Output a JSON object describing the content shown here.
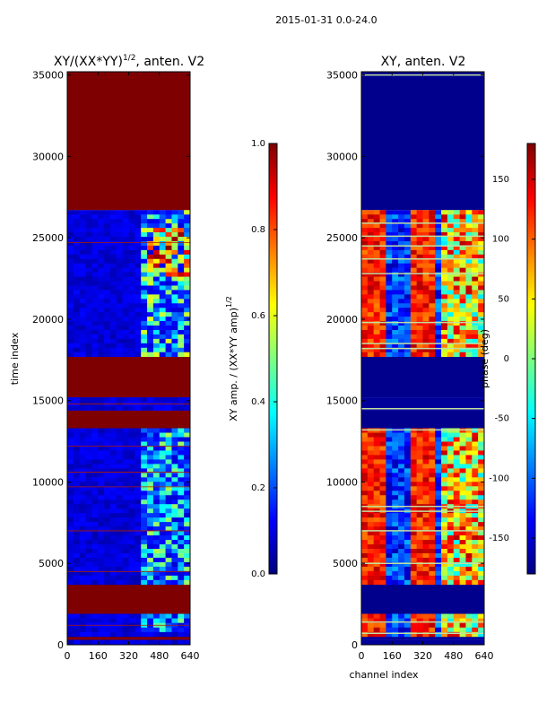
{
  "figure": {
    "suptitle": "2015-01-31 0.0-24.0"
  },
  "colors": {
    "jet": [
      "#00007f",
      "#0000ff",
      "#007fff",
      "#00ffff",
      "#7fff7f",
      "#ffff00",
      "#ff7f00",
      "#ff0000",
      "#7f0000"
    ],
    "frame": "#000000",
    "hline_left": "#b01a00",
    "hline_right": "#c0e0a0"
  },
  "chart_data": [
    {
      "type": "heatmap",
      "title_main": "XY/(XX*YY)",
      "title_sup": "1/2",
      "title_tail": ", anten. V2",
      "ylabel": "time index",
      "xlabel": "",
      "xlim": [
        0,
        640
      ],
      "ylim": [
        0,
        35200
      ],
      "xticks": [
        "0",
        "160",
        "320",
        "480",
        "640"
      ],
      "yticks": [
        "0",
        "5000",
        "10000",
        "15000",
        "20000",
        "25000",
        "30000",
        "35000"
      ],
      "bands": [
        {
          "y0": 0,
          "y1": 300,
          "v": 0.05
        },
        {
          "y0": 300,
          "y1": 500,
          "v": 1.0
        },
        {
          "y0": 500,
          "y1": 1900,
          "v": 0.08
        },
        {
          "y0": 1900,
          "y1": 3700,
          "v": 1.0
        },
        {
          "y0": 3700,
          "y1": 13300,
          "v": 0.06
        },
        {
          "y0": 13300,
          "y1": 14400,
          "v": 1.0
        },
        {
          "y0": 14400,
          "y1": 15200,
          "v": 0.05
        },
        {
          "y0": 15200,
          "y1": 17700,
          "v": 1.0
        },
        {
          "y0": 17700,
          "y1": 26700,
          "v": 0.06
        },
        {
          "y0": 26700,
          "y1": 35200,
          "v": 1.0
        }
      ],
      "hot_regions": [
        {
          "x0": 400,
          "x1": 640,
          "y0": 700,
          "y1": 1900,
          "v": 0.3
        },
        {
          "x0": 400,
          "x1": 640,
          "y0": 3700,
          "y1": 13300,
          "v": 0.35
        },
        {
          "x0": 400,
          "x1": 640,
          "y0": 17700,
          "y1": 26700,
          "v": 0.4
        }
      ],
      "hotspots": [
        {
          "x0": 420,
          "x1": 640,
          "y0": 22500,
          "y1": 25500,
          "v": 0.75
        }
      ],
      "hlines": [
        1200,
        4500,
        7000,
        9700,
        10600,
        12200,
        14800,
        24700
      ],
      "colorbar": {
        "label_main": "XY amp. / (XX*YY amp)",
        "label_sup": "1/2",
        "min": 0.0,
        "max": 1.0,
        "ticks": [
          "0.0",
          "0.2",
          "0.4",
          "0.6",
          "0.8",
          "1.0"
        ]
      }
    },
    {
      "type": "heatmap",
      "title": "XY, anten. V2",
      "ylabel": "",
      "xlabel": "channel index",
      "xlim": [
        0,
        640
      ],
      "ylim": [
        0,
        35200
      ],
      "xticks": [
        "0",
        "160",
        "320",
        "480",
        "640"
      ],
      "yticks": [
        "0",
        "5000",
        "10000",
        "15000",
        "20000",
        "25000",
        "30000",
        "35000"
      ],
      "bands": [
        {
          "y0": 0,
          "y1": 300,
          "v": -170
        },
        {
          "y0": 300,
          "y1": 500,
          "v": -170
        },
        {
          "y0": 500,
          "y1": 1900,
          "v": 20
        },
        {
          "y0": 1900,
          "y1": 3700,
          "v": -175
        },
        {
          "y0": 3700,
          "y1": 13300,
          "v": 40
        },
        {
          "y0": 13300,
          "y1": 14400,
          "v": -175
        },
        {
          "y0": 14400,
          "y1": 15200,
          "v": -170
        },
        {
          "y0": 15200,
          "y1": 17700,
          "v": -175
        },
        {
          "y0": 17700,
          "y1": 26700,
          "v": 20
        },
        {
          "y0": 26700,
          "y1": 35200,
          "v": -175
        }
      ],
      "hlines": [
        700,
        1400,
        5000,
        7000,
        8200,
        8500,
        13200,
        14500,
        18200,
        18500,
        19800,
        22800,
        23700,
        24500,
        25100,
        25900,
        35000
      ],
      "colorbar": {
        "label": "phase (deg)",
        "min": -180,
        "max": 180,
        "ticks": [
          "-150",
          "-100",
          "-50",
          "0",
          "50",
          "100",
          "150"
        ]
      }
    }
  ]
}
